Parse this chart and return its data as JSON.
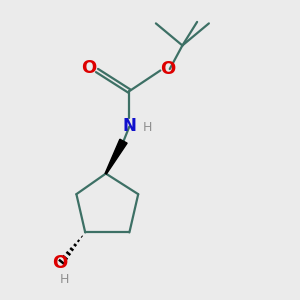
{
  "bg_color": "#ebebeb",
  "bond_color": "#3d7065",
  "o_color": "#dd0000",
  "n_color": "#1010cc",
  "h_color": "#909090",
  "line_width": 1.6,
  "fig_size": [
    3.0,
    3.0
  ],
  "dpi": 100,
  "xlim": [
    0,
    10
  ],
  "ylim": [
    0,
    10
  ]
}
